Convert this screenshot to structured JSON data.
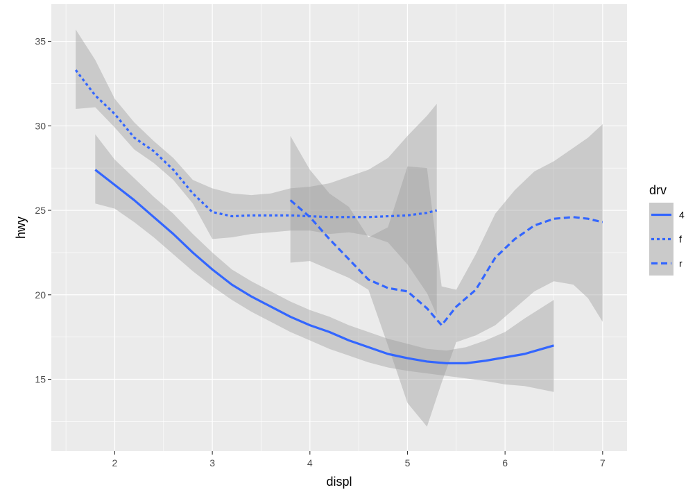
{
  "chart_data": {
    "type": "line",
    "xlabel": "displ",
    "ylabel": "hwy",
    "xlim": [
      1.35,
      7.25
    ],
    "ylim": [
      10.75,
      37.2
    ],
    "x_ticks": [
      2,
      3,
      4,
      5,
      6,
      7
    ],
    "y_ticks": [
      15,
      20,
      25,
      30,
      35
    ],
    "x_tick_labels": [
      "2",
      "3",
      "4",
      "5",
      "6",
      "7"
    ],
    "y_tick_labels": [
      "15",
      "20",
      "25",
      "30",
      "35"
    ],
    "grid": true,
    "legend": {
      "title": "drv",
      "position": "right",
      "entries": [
        "4",
        "f",
        "r"
      ]
    },
    "colors": {
      "panel": "#ebebeb",
      "grid": "#ffffff",
      "line": "#3366ff",
      "ribbon": "#999999"
    },
    "series": [
      {
        "name": "4",
        "linetype": "solid",
        "x": [
          1.8,
          2.0,
          2.2,
          2.4,
          2.6,
          2.8,
          3.0,
          3.2,
          3.4,
          3.6,
          3.8,
          4.0,
          4.2,
          4.4,
          4.6,
          4.8,
          5.0,
          5.2,
          5.4,
          5.6,
          5.8,
          6.0,
          6.2,
          6.5
        ],
        "y": [
          27.4,
          26.5,
          25.6,
          24.6,
          23.6,
          22.5,
          21.5,
          20.6,
          19.9,
          19.3,
          18.7,
          18.2,
          17.8,
          17.3,
          16.9,
          16.5,
          16.25,
          16.05,
          15.95,
          15.95,
          16.1,
          16.3,
          16.5,
          17.0
        ],
        "lower": [
          25.4,
          25.1,
          24.3,
          23.4,
          22.4,
          21.4,
          20.5,
          19.7,
          19.0,
          18.4,
          17.8,
          17.3,
          16.8,
          16.4,
          16.0,
          15.7,
          15.5,
          15.35,
          15.2,
          15.05,
          14.9,
          14.7,
          14.6,
          14.25
        ],
        "upper": [
          29.5,
          28.0,
          26.9,
          25.8,
          24.8,
          23.6,
          22.5,
          21.5,
          20.8,
          20.2,
          19.6,
          19.1,
          18.7,
          18.2,
          17.8,
          17.4,
          17.1,
          16.8,
          16.7,
          16.9,
          17.3,
          17.8,
          18.6,
          19.7
        ]
      },
      {
        "name": "f",
        "linetype": "dotted",
        "x": [
          1.6,
          1.8,
          2.0,
          2.2,
          2.4,
          2.6,
          2.8,
          3.0,
          3.2,
          3.4,
          3.6,
          3.8,
          4.0,
          4.2,
          4.4,
          4.6,
          4.8,
          5.0,
          5.2,
          5.3
        ],
        "y": [
          33.3,
          31.8,
          30.7,
          29.3,
          28.5,
          27.4,
          26.0,
          24.9,
          24.65,
          24.7,
          24.7,
          24.7,
          24.65,
          24.6,
          24.6,
          24.6,
          24.65,
          24.7,
          24.85,
          25.0
        ],
        "lower": [
          31.0,
          31.1,
          29.9,
          28.6,
          27.8,
          26.8,
          25.4,
          23.3,
          23.4,
          23.6,
          23.7,
          23.8,
          23.8,
          23.6,
          23.7,
          23.5,
          23.1,
          21.8,
          20.1,
          18.8
        ],
        "upper": [
          35.7,
          33.9,
          31.6,
          30.2,
          29.1,
          28.1,
          26.8,
          26.3,
          26.0,
          25.9,
          26.0,
          26.3,
          26.4,
          26.6,
          27.0,
          27.4,
          28.1,
          29.4,
          30.6,
          31.3
        ]
      },
      {
        "name": "r",
        "linetype": "dashed",
        "x": [
          3.8,
          4.0,
          4.2,
          4.4,
          4.6,
          4.8,
          5.0,
          5.2,
          5.35,
          5.5,
          5.7,
          5.9,
          6.1,
          6.3,
          6.5,
          6.7,
          6.85,
          7.0
        ],
        "y": [
          25.6,
          24.6,
          23.3,
          22.1,
          20.9,
          20.4,
          20.2,
          19.2,
          18.2,
          19.3,
          20.3,
          22.2,
          23.3,
          24.1,
          24.5,
          24.6,
          24.5,
          24.3
        ],
        "lower": [
          21.9,
          22.0,
          21.5,
          21.0,
          20.3,
          17.0,
          13.6,
          12.2,
          14.8,
          17.2,
          17.6,
          18.2,
          19.2,
          20.2,
          20.8,
          20.6,
          19.8,
          18.4
        ],
        "upper": [
          29.4,
          27.4,
          26.0,
          25.2,
          23.4,
          24.0,
          27.6,
          27.5,
          20.5,
          20.3,
          22.4,
          24.8,
          26.2,
          27.3,
          27.9,
          28.7,
          29.3,
          30.1
        ]
      }
    ]
  }
}
